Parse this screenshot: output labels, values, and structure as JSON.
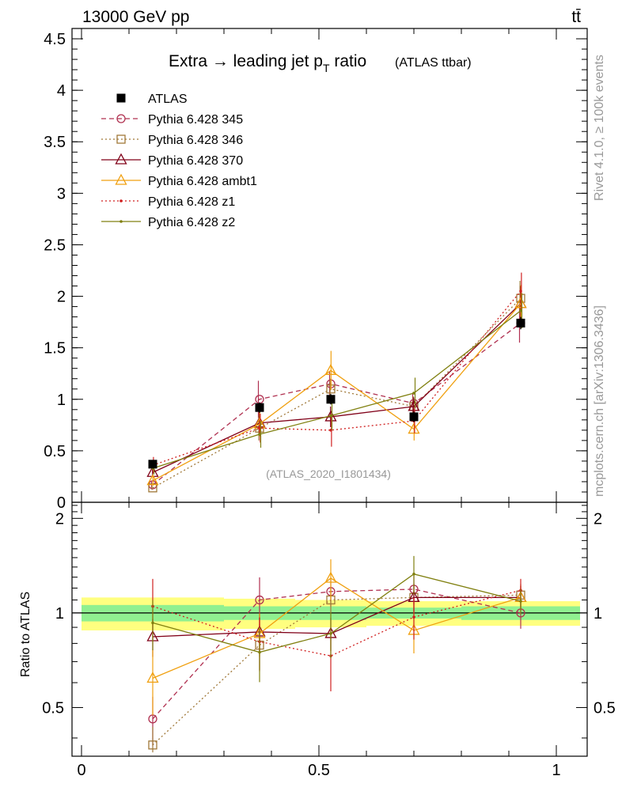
{
  "header": {
    "energy_label": "13000 GeV pp",
    "process_label": "tt̄"
  },
  "side_labels": {
    "rivet": "Rivet 4.1.0, ≥ 100k events",
    "mcplots": "mcplots.cern.ch [arXiv:1306.3436]"
  },
  "chart_data": {
    "type": "scatter",
    "title": "Extra → leading jet pT ratio",
    "title_main": "Extra → leading jet p",
    "title_sub": "T",
    "title_ratio_word": " ratio",
    "title_note": "(ATLAS ttbar)",
    "analysis_id": "(ATLAS_2020_I1801434)",
    "xlabel": "",
    "ylabel": "",
    "ratio_ylabel": "Ratio to ATLAS",
    "xlim": [
      -0.02,
      1.065
    ],
    "ylim": [
      0,
      4.6
    ],
    "ratio_ylim": [
      0.35,
      2.25
    ],
    "x_ticks": [
      0,
      0.5,
      1
    ],
    "x_tick_labels": [
      "0",
      "0.5",
      "1"
    ],
    "y_ticks": [
      0,
      0.5,
      1,
      1.5,
      2,
      2.5,
      3,
      3.5,
      4,
      4.5
    ],
    "y_tick_labels": [
      "0",
      "0.5",
      "1",
      "1.5",
      "2",
      "2.5",
      "3",
      "3.5",
      "4",
      "4.5"
    ],
    "ratio_ticks": [
      0.5,
      1,
      2
    ],
    "ratio_tick_labels": [
      "0.5",
      "1",
      "2"
    ],
    "data": {
      "name": "ATLAS",
      "x": [
        0.15,
        0.375,
        0.525,
        0.7,
        0.925
      ],
      "xerr": [
        0.15,
        0.075,
        0.075,
        0.1,
        0.125
      ],
      "y": [
        0.37,
        0.92,
        1.0,
        0.83,
        1.74
      ],
      "yerr": [
        0.04,
        0.05,
        0.05,
        0.05,
        0.06
      ],
      "band_inner": [
        0.06,
        0.05,
        0.05,
        0.04,
        0.05
      ],
      "band_outer": [
        0.12,
        0.11,
        0.1,
        0.09,
        0.09
      ]
    },
    "series": [
      {
        "name": "Pythia 6.428 345",
        "color": "#b03050",
        "dash": "6,4",
        "marker": "circle",
        "x": [
          0.15,
          0.375,
          0.525,
          0.7,
          0.925
        ],
        "y": [
          0.17,
          1.0,
          1.15,
          0.96,
          1.74
        ],
        "yerr": [
          0.03,
          0.18,
          0.12,
          0.1,
          0.19
        ],
        "ratio": [
          0.46,
          1.1,
          1.17,
          1.19,
          1.0
        ]
      },
      {
        "name": "Pythia 6.428 346",
        "color": "#a07838",
        "dash": "2,3",
        "marker": "square",
        "x": [
          0.15,
          0.375,
          0.525,
          0.7,
          0.925
        ],
        "y": [
          0.14,
          0.72,
          1.1,
          0.93,
          1.98
        ],
        "yerr": [
          0.02,
          0.12,
          0.1,
          0.1,
          0.17
        ],
        "ratio": [
          0.38,
          0.79,
          1.1,
          1.12,
          1.14
        ]
      },
      {
        "name": "Pythia 6.428 370",
        "color": "#800018",
        "dash": "",
        "marker": "triangle",
        "x": [
          0.15,
          0.375,
          0.525,
          0.7,
          0.925
        ],
        "y": [
          0.29,
          0.77,
          0.83,
          0.93,
          1.93
        ],
        "yerr": [
          0.04,
          0.11,
          0.1,
          0.09,
          0.17
        ],
        "ratio": [
          0.84,
          0.87,
          0.86,
          1.12,
          1.12
        ]
      },
      {
        "name": "Pythia 6.428 ambt1",
        "color": "#f0a010",
        "dash": "",
        "marker": "triangle",
        "x": [
          0.15,
          0.375,
          0.525,
          0.7,
          0.925
        ],
        "y": [
          0.21,
          0.76,
          1.28,
          0.71,
          1.93
        ],
        "yerr": [
          0.05,
          0.12,
          0.19,
          0.11,
          0.18
        ],
        "ratio": [
          0.62,
          0.86,
          1.29,
          0.88,
          1.12
        ]
      },
      {
        "name": "Pythia 6.428 z1",
        "color": "#d02020",
        "dash": "2,3",
        "marker": "dot",
        "x": [
          0.15,
          0.375,
          0.525,
          0.7,
          0.925
        ],
        "y": [
          0.36,
          0.72,
          0.7,
          0.79,
          2.05
        ],
        "yerr": [
          0.08,
          0.14,
          0.16,
          0.12,
          0.18
        ],
        "ratio": [
          1.05,
          0.81,
          0.73,
          0.97,
          1.18
        ]
      },
      {
        "name": "Pythia 6.428 z2",
        "color": "#808010",
        "dash": "",
        "marker": "dot",
        "x": [
          0.15,
          0.375,
          0.525,
          0.7,
          0.925
        ],
        "y": [
          0.33,
          0.66,
          0.84,
          1.06,
          1.86
        ],
        "yerr": [
          0.06,
          0.13,
          0.14,
          0.15,
          0.17
        ],
        "ratio": [
          0.93,
          0.75,
          0.86,
          1.33,
          1.09
        ]
      }
    ]
  }
}
